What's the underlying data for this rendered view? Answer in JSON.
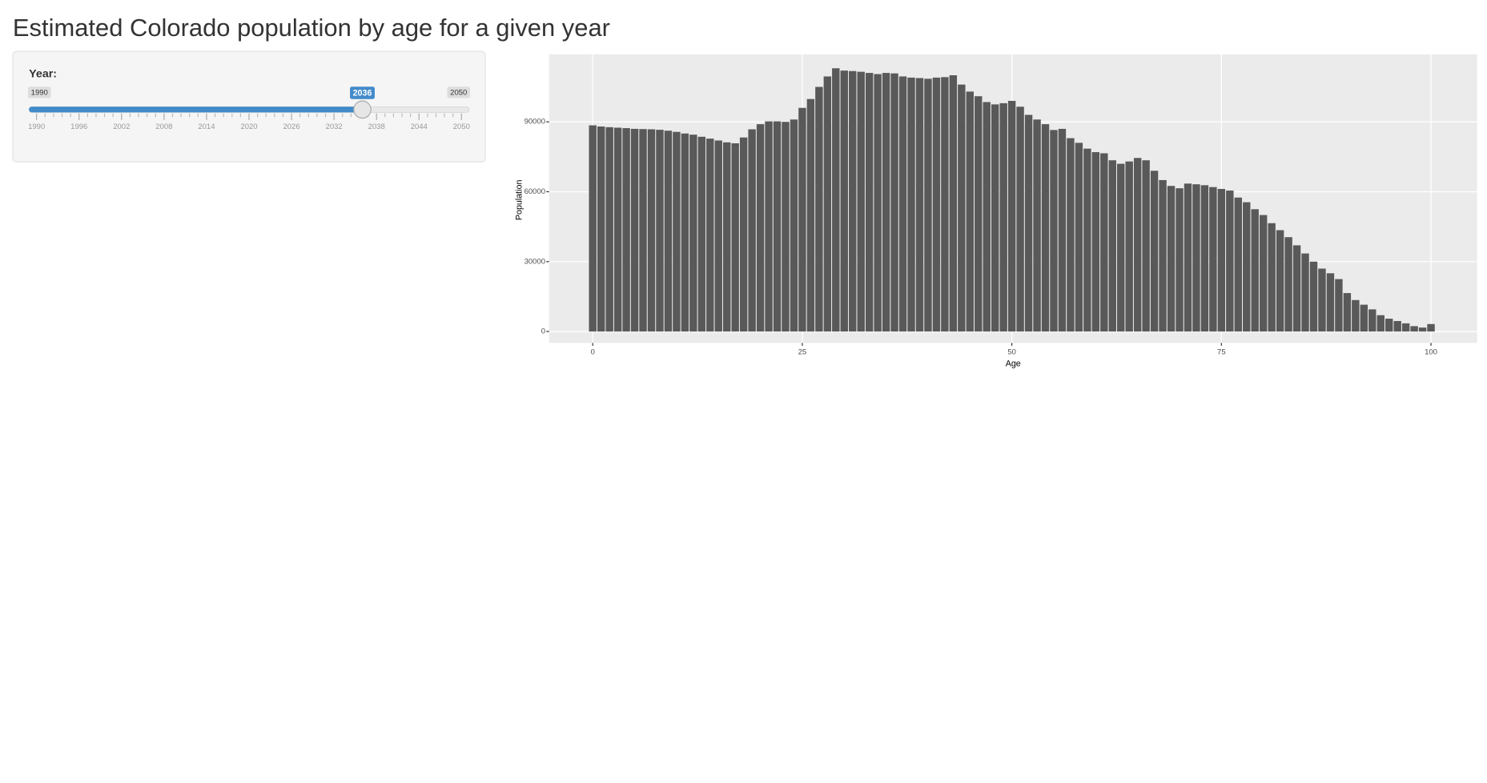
{
  "header": {
    "title": "Estimated Colorado population by age for a given year"
  },
  "slider": {
    "label": "Year:",
    "min": 1990,
    "max": 2050,
    "value": 2036,
    "ticks": [
      1990,
      1996,
      2002,
      2008,
      2014,
      2020,
      2026,
      2032,
      2038,
      2044,
      2050
    ]
  },
  "chart_data": {
    "type": "bar",
    "x_label": "Age",
    "y_label": "Population",
    "color": "#595959",
    "grid": true,
    "x": [
      0,
      1,
      2,
      3,
      4,
      5,
      6,
      7,
      8,
      9,
      10,
      11,
      12,
      13,
      14,
      15,
      16,
      17,
      18,
      19,
      20,
      21,
      22,
      23,
      24,
      25,
      26,
      27,
      28,
      29,
      30,
      31,
      32,
      33,
      34,
      35,
      36,
      37,
      38,
      39,
      40,
      41,
      42,
      43,
      44,
      45,
      46,
      47,
      48,
      49,
      50,
      51,
      52,
      53,
      54,
      55,
      56,
      57,
      58,
      59,
      60,
      61,
      62,
      63,
      64,
      65,
      66,
      67,
      68,
      69,
      70,
      71,
      72,
      73,
      74,
      75,
      76,
      77,
      78,
      79,
      80,
      81,
      82,
      83,
      84,
      85,
      86,
      87,
      88,
      89,
      90,
      91,
      92,
      93,
      94,
      95,
      96,
      97,
      98,
      99,
      100
    ],
    "values": [
      88500,
      88000,
      87700,
      87500,
      87300,
      87000,
      86900,
      86800,
      86600,
      86200,
      85700,
      85000,
      84500,
      83600,
      82800,
      82000,
      81200,
      80800,
      83300,
      86800,
      89000,
      90200,
      90200,
      90000,
      91000,
      96000,
      99800,
      105000,
      109500,
      113000,
      112000,
      111800,
      111500,
      111000,
      110500,
      111000,
      110800,
      109500,
      109000,
      108800,
      108500,
      109000,
      109200,
      110000,
      106000,
      103000,
      101000,
      98500,
      97500,
      98000,
      99000,
      96500,
      93000,
      91000,
      89000,
      86500,
      87000,
      83000,
      81000,
      78500,
      77000,
      76500,
      73500,
      72000,
      73000,
      74500,
      73500,
      69000,
      65000,
      62500,
      61500,
      63500,
      63200,
      62800,
      62000,
      61200,
      60500,
      57500,
      55500,
      52500,
      50000,
      46500,
      43500,
      40500,
      37000,
      33500,
      30000,
      27000,
      25000,
      22500,
      16500,
      13500,
      11500,
      9500,
      7000,
      5500,
      4500,
      3500,
      2300,
      1700,
      3200
    ],
    "xlim": [
      -5.2,
      105.5
    ],
    "xticks": [
      0,
      25,
      50,
      75,
      100
    ],
    "ylim": [
      -4900,
      119000
    ],
    "yticks": [
      0,
      30000,
      60000,
      90000
    ]
  }
}
